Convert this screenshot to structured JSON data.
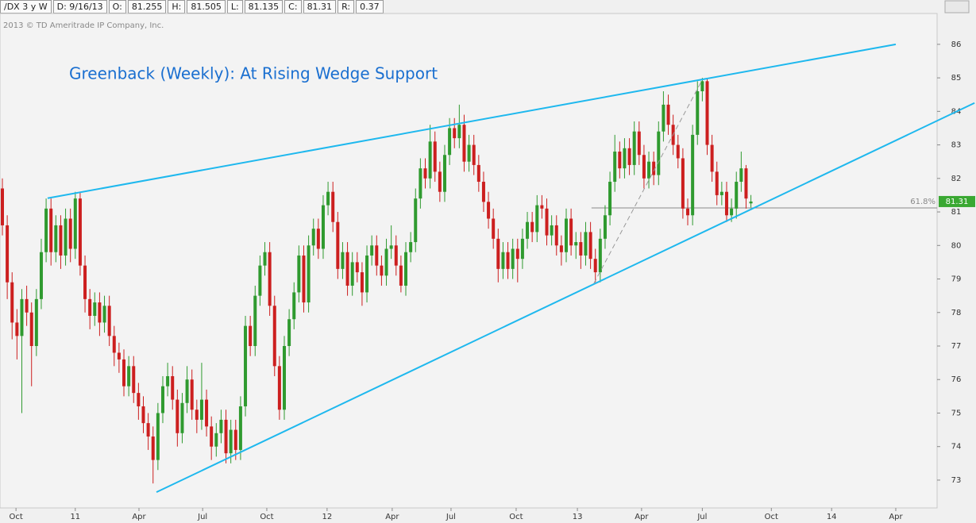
{
  "header": {
    "symbol": "/DX 3 y W",
    "date": "D: 9/16/13",
    "open_label": "O:",
    "open": 81.255,
    "high_label": "H:",
    "high": 81.505,
    "low_label": "L:",
    "low": 81.135,
    "close_label": "C:",
    "close": 81.31,
    "range_label": "R:",
    "range": 0.37
  },
  "chart_data": {
    "type": "candlestick",
    "title": "Greenback (Weekly): At Rising Wedge Support",
    "source": "2013 © TD Ameritrade IP Company, Inc.",
    "up_color": "#2f9a2f",
    "down_color": "#cc1f1f",
    "grid": false,
    "xlim": [
      -0.49,
      192.3
    ],
    "ylim": [
      72.17,
      86.92
    ],
    "xticks": [
      {
        "value": 2.8,
        "label": "Oct"
      },
      {
        "value": 15,
        "label": "11"
      },
      {
        "value": 28.1,
        "label": "Apr"
      },
      {
        "value": 41.2,
        "label": "Jul"
      },
      {
        "value": 54.4,
        "label": "Oct"
      },
      {
        "value": 66.8,
        "label": "12"
      },
      {
        "value": 80.2,
        "label": "Apr"
      },
      {
        "value": 92.3,
        "label": "Jul"
      },
      {
        "value": 105.7,
        "label": "Oct"
      },
      {
        "value": 118.3,
        "label": "13"
      },
      {
        "value": 131.5,
        "label": "Apr"
      },
      {
        "value": 144,
        "label": "Jul"
      },
      {
        "value": 158.2,
        "label": "Oct"
      },
      {
        "value": 170.6,
        "label": "14"
      },
      {
        "value": 183.8,
        "label": "Apr"
      }
    ],
    "yticks": [
      73,
      74,
      75,
      76,
      77,
      78,
      79,
      80,
      81,
      82,
      83,
      84,
      85,
      86
    ],
    "open": [
      81.7,
      80.6,
      78.9,
      77.7,
      77.3,
      78.4,
      78.0,
      77.0,
      78.4,
      79.8,
      81.1,
      79.8,
      80.6,
      79.7,
      80.8,
      79.9,
      81.4,
      79.4,
      78.4,
      77.9,
      78.3,
      77.7,
      78.2,
      77.3,
      76.8,
      76.6,
      75.8,
      76.4,
      75.6,
      75.2,
      74.7,
      74.3,
      73.6,
      75.0,
      75.8,
      76.1,
      75.4,
      74.4,
      75.3,
      76.0,
      75.1,
      74.8,
      75.4,
      74.6,
      74.0,
      74.4,
      74.8,
      73.8,
      74.5,
      73.9,
      75.2,
      77.6,
      77.0,
      78.5,
      79.4,
      79.8,
      78.2,
      76.4,
      75.1,
      77.0,
      77.8,
      78.6,
      79.7,
      78.3,
      80.0,
      80.5,
      79.9,
      81.2,
      81.6,
      80.7,
      79.3,
      79.8,
      78.8,
      79.5,
      79.2,
      78.6,
      79.7,
      80.0,
      79.4,
      79.1,
      79.9,
      80.0,
      79.4,
      78.8,
      79.8,
      80.1,
      81.4,
      82.3,
      82.0,
      83.1,
      82.2,
      81.6,
      82.7,
      83.5,
      83.2,
      83.6,
      82.5,
      83.0,
      82.4,
      81.9,
      81.3,
      80.8,
      80.2,
      79.3,
      79.8,
      79.3,
      79.9,
      79.6,
      80.2,
      80.7,
      80.4,
      81.2,
      81.1,
      80.3,
      80.6,
      80.0,
      79.8,
      80.8,
      80.0,
      80.1,
      79.7,
      80.4,
      79.6,
      79.2,
      80.2,
      80.9,
      81.9,
      82.8,
      82.3,
      82.9,
      82.4,
      83.4,
      82.7,
      82.0,
      82.5,
      82.1,
      83.4,
      84.2,
      83.6,
      83.0,
      82.6,
      81.1,
      80.9,
      83.3,
      84.6,
      84.9,
      83.0,
      82.2,
      81.5,
      81.6,
      80.9,
      81.1,
      81.9,
      82.3,
      81.255
    ],
    "high": [
      82.0,
      80.9,
      79.2,
      78.1,
      78.7,
      78.8,
      78.3,
      78.7,
      80.2,
      81.4,
      81.4,
      80.9,
      80.9,
      81.1,
      81.1,
      81.6,
      81.6,
      79.7,
      78.7,
      78.6,
      78.6,
      78.5,
      78.5,
      77.6,
      77.1,
      76.9,
      76.7,
      76.7,
      75.9,
      75.5,
      75.0,
      74.6,
      75.3,
      76.1,
      76.5,
      76.4,
      75.7,
      75.6,
      76.4,
      76.3,
      75.4,
      76.5,
      75.7,
      74.9,
      74.7,
      75.1,
      75.1,
      74.8,
      74.8,
      75.5,
      77.9,
      77.9,
      78.8,
      79.7,
      80.1,
      80.1,
      78.5,
      76.7,
      77.3,
      78.1,
      78.9,
      80.0,
      80.0,
      80.3,
      80.8,
      80.8,
      81.5,
      81.9,
      81.9,
      81.0,
      80.1,
      80.1,
      79.8,
      79.8,
      79.5,
      80.0,
      80.3,
      80.3,
      79.7,
      80.2,
      80.6,
      80.3,
      79.7,
      80.1,
      80.4,
      81.7,
      82.6,
      82.6,
      83.6,
      83.4,
      82.5,
      83.0,
      83.8,
      83.8,
      84.2,
      83.9,
      83.3,
      83.3,
      82.7,
      82.2,
      81.6,
      81.1,
      80.5,
      80.1,
      80.1,
      80.2,
      80.2,
      80.5,
      81.0,
      81.0,
      81.5,
      81.5,
      81.4,
      80.9,
      80.9,
      80.3,
      81.1,
      81.1,
      80.4,
      80.4,
      80.7,
      80.7,
      79.9,
      80.5,
      81.2,
      82.2,
      83.3,
      83.1,
      83.2,
      83.2,
      83.7,
      83.7,
      83.0,
      82.8,
      82.8,
      83.7,
      84.6,
      84.5,
      83.9,
      83.3,
      82.9,
      81.4,
      83.6,
      84.9,
      85.0,
      85.0,
      83.3,
      82.5,
      81.9,
      81.9,
      81.4,
      82.2,
      82.8,
      82.4,
      81.505
    ],
    "low": [
      80.3,
      78.4,
      77.2,
      76.6,
      75.0,
      77.6,
      75.8,
      76.7,
      78.1,
      79.5,
      79.4,
      79.5,
      79.3,
      79.4,
      79.5,
      79.6,
      79.1,
      78.0,
      77.5,
      77.6,
      77.3,
      77.4,
      77.0,
      76.4,
      76.2,
      75.5,
      75.5,
      75.3,
      74.8,
      74.4,
      73.9,
      72.9,
      73.3,
      74.7,
      75.5,
      75.1,
      74.0,
      74.1,
      75.0,
      74.8,
      74.4,
      74.5,
      74.3,
      73.6,
      73.7,
      74.1,
      73.5,
      73.5,
      73.6,
      73.6,
      74.9,
      76.7,
      76.7,
      78.2,
      79.1,
      77.9,
      76.1,
      74.8,
      74.8,
      76.7,
      77.5,
      78.3,
      78.0,
      78.0,
      79.7,
      79.6,
      79.6,
      80.9,
      80.4,
      79.0,
      79.0,
      78.5,
      78.5,
      78.9,
      78.2,
      78.3,
      79.4,
      79.1,
      78.8,
      78.8,
      79.6,
      79.1,
      78.6,
      78.5,
      79.5,
      79.8,
      81.1,
      81.7,
      81.7,
      81.9,
      81.3,
      81.3,
      82.4,
      82.9,
      82.9,
      82.2,
      82.2,
      82.1,
      81.6,
      81.0,
      80.5,
      79.9,
      78.9,
      79.0,
      79.0,
      79.0,
      78.9,
      79.3,
      79.9,
      80.1,
      80.1,
      80.8,
      80.0,
      80.0,
      79.7,
      79.4,
      79.5,
      79.7,
      79.6,
      79.3,
      79.4,
      79.3,
      78.9,
      78.9,
      79.9,
      80.6,
      81.6,
      82.0,
      82.0,
      82.1,
      82.1,
      82.4,
      81.7,
      81.7,
      81.8,
      81.8,
      83.1,
      83.3,
      82.7,
      82.3,
      80.8,
      80.6,
      80.6,
      83.0,
      84.3,
      82.7,
      81.9,
      81.2,
      81.2,
      80.7,
      80.7,
      80.8,
      81.6,
      81.1,
      81.135
    ],
    "close": [
      80.6,
      78.9,
      77.7,
      77.3,
      78.4,
      78.0,
      77.0,
      78.4,
      79.8,
      81.1,
      79.8,
      80.6,
      79.7,
      80.8,
      79.9,
      81.4,
      79.4,
      78.4,
      77.9,
      78.3,
      77.7,
      78.2,
      77.3,
      76.8,
      76.6,
      75.8,
      76.4,
      75.6,
      75.2,
      74.7,
      74.3,
      73.6,
      75.0,
      75.8,
      76.1,
      75.4,
      74.4,
      75.3,
      76.0,
      75.1,
      74.8,
      75.4,
      74.6,
      74.0,
      74.4,
      74.8,
      73.8,
      74.5,
      73.9,
      75.2,
      77.6,
      77.0,
      78.5,
      79.4,
      79.8,
      78.2,
      76.4,
      75.1,
      77.0,
      77.8,
      78.6,
      79.7,
      78.3,
      80.0,
      80.5,
      79.9,
      81.2,
      81.6,
      80.7,
      79.3,
      79.8,
      78.8,
      79.5,
      79.2,
      78.6,
      79.7,
      80.0,
      79.4,
      79.1,
      79.9,
      80.0,
      79.4,
      78.8,
      79.8,
      80.1,
      81.4,
      82.3,
      82.0,
      83.1,
      82.2,
      81.6,
      82.7,
      83.5,
      83.2,
      83.6,
      82.5,
      83.0,
      82.4,
      81.9,
      81.3,
      80.8,
      80.2,
      79.3,
      79.8,
      79.3,
      79.9,
      79.6,
      80.2,
      80.7,
      80.4,
      81.2,
      81.1,
      80.3,
      80.6,
      80.0,
      79.8,
      80.8,
      80.0,
      80.1,
      79.7,
      80.4,
      79.6,
      79.2,
      80.2,
      80.9,
      81.9,
      82.8,
      82.3,
      82.9,
      82.4,
      83.4,
      82.7,
      82.0,
      82.5,
      82.1,
      83.4,
      84.2,
      83.6,
      83.0,
      82.6,
      81.1,
      80.9,
      83.3,
      84.6,
      84.9,
      83.0,
      82.2,
      81.5,
      81.6,
      80.9,
      81.1,
      81.9,
      82.3,
      81.4,
      81.31
    ],
    "trendlines": [
      {
        "x": [
          9.3,
          183.8
        ],
        "y": [
          81.41,
          86
        ],
        "color": "#1eb8ee"
      },
      {
        "x": [
          31.7,
          200
        ],
        "y": [
          72.64,
          84.25
        ],
        "color": "#1eb8ee"
      },
      {
        "x": [
          121.7,
          143.8
        ],
        "y": [
          78.87,
          84.89
        ],
        "color": "#999999",
        "dashed": true
      }
    ],
    "fib_level": {
      "label": "61.8%",
      "value": 81.12,
      "start": 121.2,
      "color": "#888888"
    },
    "price_tag_color": "#3aa832"
  }
}
